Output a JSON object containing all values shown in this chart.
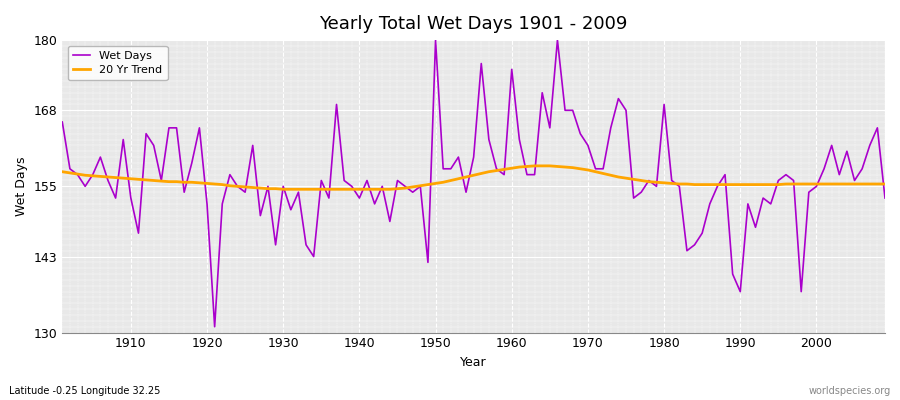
{
  "title": "Yearly Total Wet Days 1901 - 2009",
  "xlabel": "Year",
  "ylabel": "Wet Days",
  "footnote_left": "Latitude -0.25 Longitude 32.25",
  "footnote_right": "worldspecies.org",
  "ylim": [
    130,
    180
  ],
  "yticks": [
    130,
    143,
    155,
    168,
    180
  ],
  "xlim": [
    1901,
    2009
  ],
  "xticks": [
    1910,
    1920,
    1930,
    1940,
    1950,
    1960,
    1970,
    1980,
    1990,
    2000
  ],
  "line_color": "#AA00CC",
  "trend_color": "#FFA500",
  "bg_color": "#DCDCDC",
  "plot_bg": "#E8E8E8",
  "years": [
    1901,
    1902,
    1903,
    1904,
    1905,
    1906,
    1907,
    1908,
    1909,
    1910,
    1911,
    1912,
    1913,
    1914,
    1915,
    1916,
    1917,
    1918,
    1919,
    1920,
    1921,
    1922,
    1923,
    1924,
    1925,
    1926,
    1927,
    1928,
    1929,
    1930,
    1931,
    1932,
    1933,
    1934,
    1935,
    1936,
    1937,
    1938,
    1939,
    1940,
    1941,
    1942,
    1943,
    1944,
    1945,
    1946,
    1947,
    1948,
    1949,
    1950,
    1951,
    1952,
    1953,
    1954,
    1955,
    1956,
    1957,
    1958,
    1959,
    1960,
    1961,
    1962,
    1963,
    1964,
    1965,
    1966,
    1967,
    1968,
    1969,
    1970,
    1971,
    1972,
    1973,
    1974,
    1975,
    1976,
    1977,
    1978,
    1979,
    1980,
    1981,
    1982,
    1983,
    1984,
    1985,
    1986,
    1987,
    1988,
    1989,
    1990,
    1991,
    1992,
    1993,
    1994,
    1995,
    1996,
    1997,
    1998,
    1999,
    2000,
    2001,
    2002,
    2003,
    2004,
    2005,
    2006,
    2007,
    2008,
    2009
  ],
  "wet_days": [
    166,
    158,
    157,
    155,
    157,
    160,
    156,
    153,
    163,
    153,
    147,
    164,
    162,
    156,
    165,
    165,
    154,
    159,
    165,
    152,
    131,
    152,
    157,
    155,
    154,
    162,
    150,
    155,
    145,
    155,
    151,
    154,
    145,
    143,
    156,
    153,
    169,
    156,
    155,
    153,
    156,
    152,
    155,
    149,
    156,
    155,
    154,
    155,
    142,
    180,
    158,
    158,
    160,
    154,
    160,
    176,
    163,
    158,
    157,
    175,
    163,
    157,
    157,
    171,
    165,
    180,
    168,
    168,
    164,
    162,
    158,
    158,
    165,
    170,
    168,
    153,
    154,
    156,
    155,
    169,
    156,
    155,
    144,
    145,
    147,
    152,
    155,
    157,
    140,
    137,
    152,
    148,
    153,
    152,
    156,
    157,
    156,
    137,
    154,
    155,
    158,
    162,
    157,
    161,
    156,
    158,
    162,
    165,
    153
  ],
  "trend_years": [
    1901,
    1902,
    1903,
    1904,
    1905,
    1906,
    1907,
    1908,
    1909,
    1910,
    1911,
    1912,
    1913,
    1914,
    1915,
    1916,
    1917,
    1918,
    1919,
    1920,
    1921,
    1922,
    1923,
    1924,
    1925,
    1926,
    1927,
    1928,
    1929,
    1930,
    1931,
    1932,
    1933,
    1934,
    1935,
    1936,
    1937,
    1938,
    1939,
    1940,
    1941,
    1942,
    1943,
    1944,
    1945,
    1946,
    1947,
    1948,
    1949,
    1950,
    1951,
    1952,
    1953,
    1954,
    1955,
    1956,
    1957,
    1958,
    1959,
    1960,
    1961,
    1962,
    1963,
    1964,
    1965,
    1966,
    1967,
    1968,
    1969,
    1970,
    1971,
    1972,
    1973,
    1974,
    1975,
    1976,
    1977,
    1978,
    1979,
    1980,
    1981,
    1982,
    1983,
    1984,
    1985,
    1986,
    1987,
    1988,
    1989,
    1990,
    1991,
    1992,
    1993,
    1994,
    1995,
    1996,
    1997,
    1998,
    1999,
    2000,
    2001,
    2002,
    2003,
    2004,
    2005,
    2006,
    2007,
    2008,
    2009
  ],
  "trend_values": [
    157.5,
    157.3,
    157.1,
    156.9,
    156.8,
    156.7,
    156.6,
    156.5,
    156.4,
    156.3,
    156.2,
    156.1,
    156.0,
    155.9,
    155.8,
    155.8,
    155.7,
    155.7,
    155.6,
    155.5,
    155.4,
    155.3,
    155.1,
    155.0,
    154.9,
    154.8,
    154.7,
    154.6,
    154.6,
    154.5,
    154.5,
    154.5,
    154.5,
    154.5,
    154.5,
    154.5,
    154.5,
    154.5,
    154.5,
    154.5,
    154.5,
    154.5,
    154.5,
    154.5,
    154.6,
    154.7,
    154.9,
    155.1,
    155.3,
    155.5,
    155.7,
    156.0,
    156.3,
    156.6,
    156.9,
    157.2,
    157.5,
    157.7,
    157.9,
    158.1,
    158.3,
    158.4,
    158.5,
    158.5,
    158.5,
    158.4,
    158.3,
    158.2,
    158.0,
    157.8,
    157.5,
    157.2,
    156.9,
    156.6,
    156.4,
    156.2,
    156.0,
    155.8,
    155.7,
    155.6,
    155.5,
    155.4,
    155.4,
    155.3,
    155.3,
    155.3,
    155.3,
    155.3,
    155.3,
    155.3,
    155.3,
    155.3,
    155.3,
    155.3,
    155.3,
    155.4,
    155.4,
    155.4,
    155.4,
    155.4,
    155.4,
    155.4,
    155.4,
    155.4,
    155.4,
    155.4,
    155.4,
    155.4,
    155.4
  ]
}
